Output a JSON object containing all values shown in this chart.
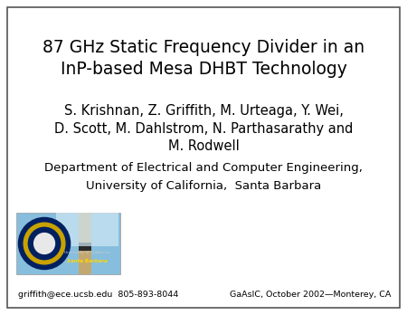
{
  "title_line1": "87 GHz Static Frequency Divider in an",
  "title_line2": "InP-based Mesa DHBT Technology",
  "authors_line1": "S. Krishnan, Z. Griffith, M. Urteaga, Y. Wei,",
  "authors_line2": "D. Scott, M. Dahlstrom, N. Parthasarathy and",
  "authors_line3": "M. Rodwell",
  "dept": "Department of Electrical and Computer Engineering,",
  "university": "University of California,  Santa Barbara",
  "footer_left": "griffith@ece.ucsb.edu  805-893-8044",
  "footer_right": "GaAsIC, October 2002—Monterey, CA",
  "bg_color": "#ffffff",
  "border_color": "#555555",
  "text_color": "#000000",
  "title_fontsize": 13.5,
  "authors_fontsize": 10.5,
  "dept_fontsize": 9.5,
  "footer_fontsize": 6.8,
  "border_lw": 1.2
}
